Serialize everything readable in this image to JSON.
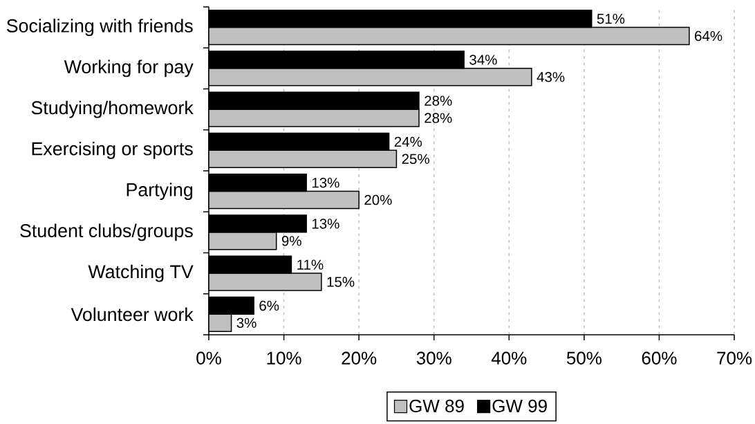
{
  "chart_data": {
    "type": "bar",
    "orientation": "horizontal",
    "categories": [
      "Socializing with friends",
      "Working for pay",
      "Studying/homework",
      "Exercising or sports",
      "Partying",
      "Student clubs/groups",
      "Watching TV",
      "Volunteer work"
    ],
    "series": [
      {
        "name": "GW 89",
        "color": "#c0c0c0",
        "values": [
          64,
          43,
          28,
          25,
          20,
          9,
          15,
          3
        ],
        "value_labels": [
          "64%",
          "43%",
          "28%",
          "25%",
          "20%",
          "9%",
          "15%",
          "3%"
        ]
      },
      {
        "name": "GW 99",
        "color": "#000000",
        "values": [
          51,
          34,
          28,
          24,
          13,
          13,
          11,
          6
        ],
        "value_labels": [
          "51%",
          "34%",
          "28%",
          "24%",
          "13%",
          "13%",
          "11%",
          "6%"
        ]
      }
    ],
    "xlim": [
      0,
      70
    ],
    "xticks": [
      {
        "value": 0,
        "label": "0%"
      },
      {
        "value": 10,
        "label": "10%"
      },
      {
        "value": 20,
        "label": "20%"
      },
      {
        "value": 30,
        "label": "30%"
      },
      {
        "value": 40,
        "label": "40%"
      },
      {
        "value": 50,
        "label": "50%"
      },
      {
        "value": 60,
        "label": "60%"
      },
      {
        "value": 70,
        "label": "70%"
      }
    ],
    "grid": "x",
    "legend": "bottom"
  }
}
